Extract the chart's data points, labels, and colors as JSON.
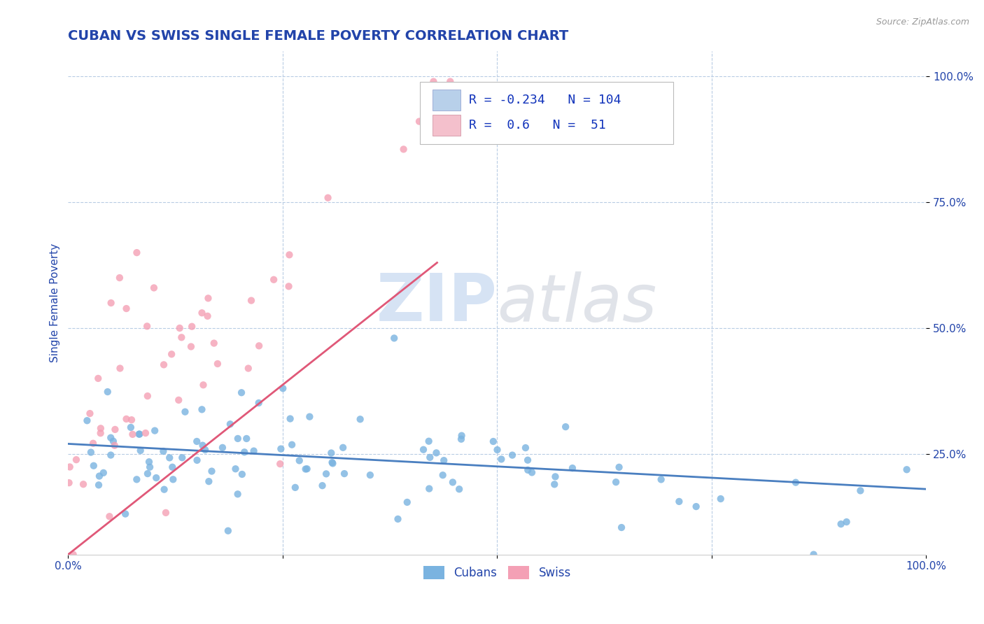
{
  "title": "CUBAN VS SWISS SINGLE FEMALE POVERTY CORRELATION CHART",
  "source": "Source: ZipAtlas.com",
  "ylabel": "Single Female Poverty",
  "cubans_R": -0.234,
  "cubans_N": 104,
  "swiss_R": 0.6,
  "swiss_N": 51,
  "cubans_color": "#7ab3e0",
  "swiss_color": "#f4a0b5",
  "cubans_line_color": "#4a7fc0",
  "swiss_line_color": "#e05878",
  "legend_cubans_color": "#b8d0ea",
  "legend_swiss_color": "#f4c0cc",
  "watermark_zip_color": "#c5d8f0",
  "watermark_atlas_color": "#c8ccd8",
  "background_color": "#ffffff",
  "grid_color": "#b8cce4",
  "title_color": "#2244aa",
  "axis_label_color": "#2244aa",
  "tick_label_color": "#2244aa",
  "legend_text_color": "#1133bb",
  "title_fontsize": 14,
  "axis_label_fontsize": 11,
  "tick_fontsize": 11,
  "legend_fontsize": 13
}
